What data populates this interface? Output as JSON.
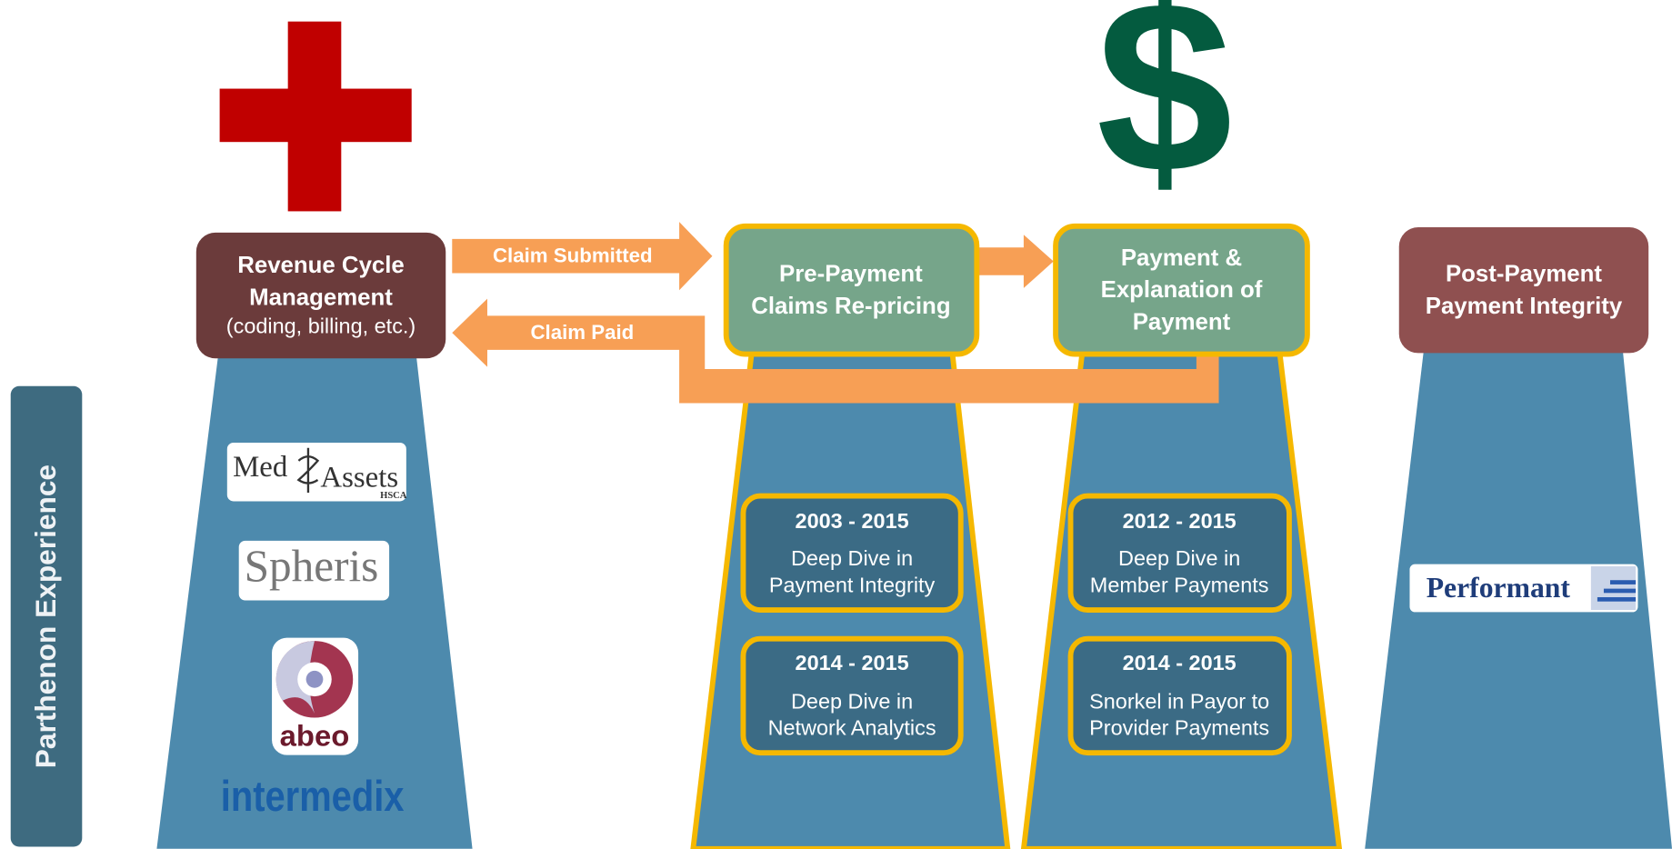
{
  "side_label": "Parthenon Experience",
  "dollar_icon": "$",
  "arrows": {
    "submitted": "Claim Submitted",
    "paid": "Claim Paid"
  },
  "stages": [
    {
      "title": [
        "Revenue Cycle",
        "Management"
      ],
      "subtitle": "(coding, billing, etc.)",
      "logos": {
        "medassets": [
          "Med",
          "Assets"
        ],
        "medassets_sub": "HSCA",
        "spheris": "Spheris",
        "abeo": "abeo",
        "intermedix": "intermedix"
      }
    },
    {
      "title": [
        "Pre-Payment",
        "Claims Re-pricing"
      ],
      "experience": [
        {
          "years": "2003 - 2015",
          "text": [
            "Deep Dive in",
            "Payment Integrity"
          ]
        },
        {
          "years": "2014 - 2015",
          "text": [
            "Deep Dive in",
            "Network Analytics"
          ]
        }
      ]
    },
    {
      "title": [
        "Payment &",
        "Explanation of",
        "Payment"
      ],
      "experience": [
        {
          "years": "2012 - 2015",
          "text": [
            "Deep Dive in",
            "Member Payments"
          ]
        },
        {
          "years": "2014 - 2015",
          "text": [
            "Snorkel in Payor to",
            "Provider Payments"
          ]
        }
      ]
    },
    {
      "title": [
        "Post-Payment",
        "Payment Integrity"
      ],
      "logos": {
        "performant": "Performant"
      }
    }
  ]
}
